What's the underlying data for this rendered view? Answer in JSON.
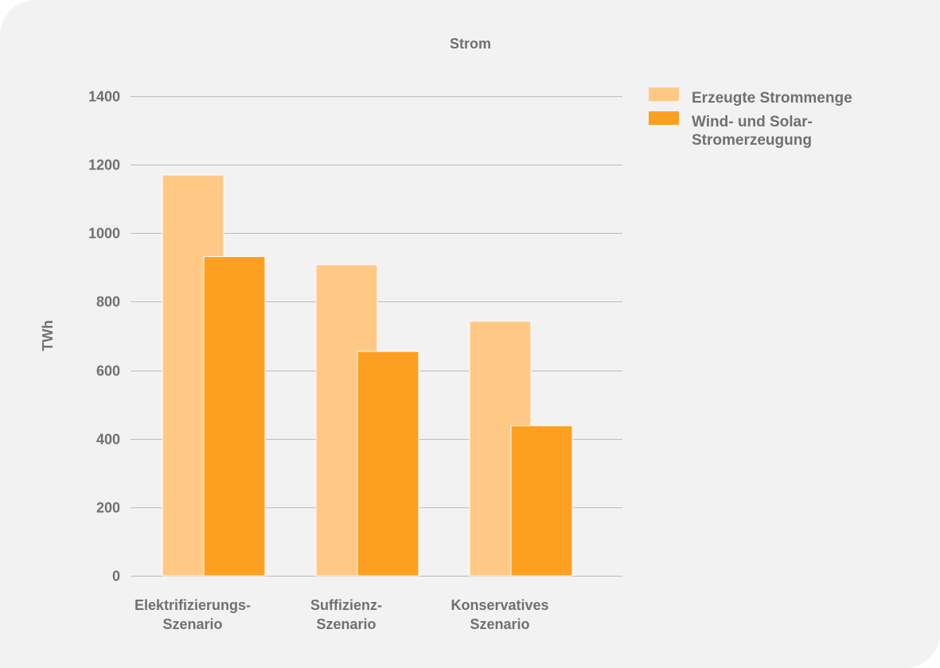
{
  "chart_data": {
    "type": "bar",
    "title": "Strom",
    "xlabel": "",
    "ylabel": "TWh",
    "ylim": [
      0,
      1400
    ],
    "yticks": [
      0,
      200,
      400,
      600,
      800,
      1000,
      1200,
      1400
    ],
    "grid": true,
    "legend_position": "top-right",
    "categories": [
      [
        "Elektrifizierungs-",
        "Szenario"
      ],
      [
        "Suffizienz-",
        "Szenario"
      ],
      [
        "Konservatives",
        "Szenario"
      ]
    ],
    "series": [
      {
        "name": [
          "Erzeugte Strommenge"
        ],
        "color": "#ffc985",
        "values": [
          1170,
          908,
          743
        ]
      },
      {
        "name": [
          "Wind- und Solar-",
          "Stromerzeugung"
        ],
        "color": "#fda021",
        "values": [
          932,
          655,
          438
        ]
      }
    ]
  },
  "colors": {
    "background": "#f2f2f2",
    "grid": "#bdbdbd",
    "text": "#707070"
  }
}
